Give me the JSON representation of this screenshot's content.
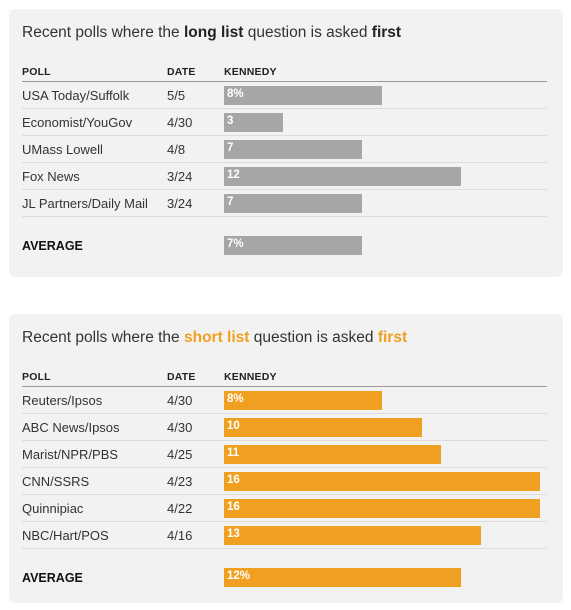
{
  "chart_data": [
    {
      "type": "bar",
      "title_parts": [
        {
          "text": "Recent polls where the ",
          "emph": false
        },
        {
          "text": "long list",
          "emph": true
        },
        {
          "text": " question is asked ",
          "emph": false
        },
        {
          "text": "first",
          "emph": true
        }
      ],
      "columns": {
        "poll": "POLL",
        "date": "DATE",
        "value": "KENNEDY"
      },
      "color": "#a6a6a6",
      "accent": "#222222",
      "rows": [
        {
          "poll": "USA Today/Suffolk",
          "date": "5/5",
          "value": 8,
          "label": "8%"
        },
        {
          "poll": "Economist/YouGov",
          "date": "4/30",
          "value": 3,
          "label": "3"
        },
        {
          "poll": "UMass Lowell",
          "date": "4/8",
          "value": 7,
          "label": "7"
        },
        {
          "poll": "Fox News",
          "date": "3/24",
          "value": 12,
          "label": "12"
        },
        {
          "poll": "JL Partners/Daily Mail",
          "date": "3/24",
          "value": 7,
          "label": "7"
        }
      ],
      "average": {
        "label": "AVERAGE",
        "value": 7,
        "display": "7%"
      },
      "xlim": [
        0,
        16.3
      ]
    },
    {
      "type": "bar",
      "title_parts": [
        {
          "text": "Recent polls where the ",
          "emph": false
        },
        {
          "text": "short list",
          "emph": true
        },
        {
          "text": " question is asked ",
          "emph": false
        },
        {
          "text": "first",
          "emph": true
        }
      ],
      "columns": {
        "poll": "POLL",
        "date": "DATE",
        "value": "KENNEDY"
      },
      "color": "#f0a020",
      "accent": "#f0a020",
      "rows": [
        {
          "poll": "Reuters/Ipsos",
          "date": "4/30",
          "value": 8,
          "label": "8%"
        },
        {
          "poll": "ABC News/Ipsos",
          "date": "4/30",
          "value": 10,
          "label": "10"
        },
        {
          "poll": "Marist/NPR/PBS",
          "date": "4/25",
          "value": 11,
          "label": "11"
        },
        {
          "poll": "CNN/SSRS",
          "date": "4/23",
          "value": 16,
          "label": "16"
        },
        {
          "poll": "Quinnipiac",
          "date": "4/22",
          "value": 16,
          "label": "16"
        },
        {
          "poll": "NBC/Hart/POS",
          "date": "4/16",
          "value": 13,
          "label": "13"
        }
      ],
      "average": {
        "label": "AVERAGE",
        "value": 12,
        "display": "12%"
      },
      "xlim": [
        0,
        16.3
      ]
    }
  ]
}
